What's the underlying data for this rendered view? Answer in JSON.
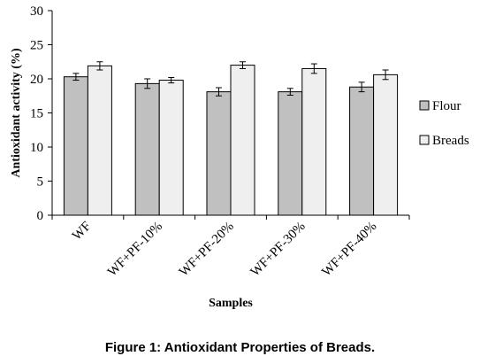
{
  "caption": "Figure 1: Antioxidant Properties of Breads.",
  "chart_data": {
    "type": "bar",
    "title": "",
    "xlabel": "Samples",
    "ylabel": "Antioxidant  activity (%)",
    "ylim": [
      0,
      30
    ],
    "yticks": [
      "0",
      "5",
      "10",
      "15",
      "20",
      "25",
      "30"
    ],
    "grid": false,
    "legend_position": "right",
    "categories": [
      "WF",
      "WF+PF-10%",
      "WF+PF-20%",
      "WF+PF-30%",
      "WF+PF-40%"
    ],
    "series": [
      {
        "name": "Flour",
        "color": "#c0c0c0",
        "values": [
          20.3,
          19.3,
          18.1,
          18.1,
          18.8
        ],
        "errors": [
          0.5,
          0.7,
          0.6,
          0.5,
          0.7
        ]
      },
      {
        "name": "Breads",
        "color": "#efefef",
        "values": [
          21.9,
          19.8,
          22.0,
          21.5,
          20.6
        ],
        "errors": [
          0.6,
          0.4,
          0.5,
          0.7,
          0.7
        ]
      }
    ]
  }
}
